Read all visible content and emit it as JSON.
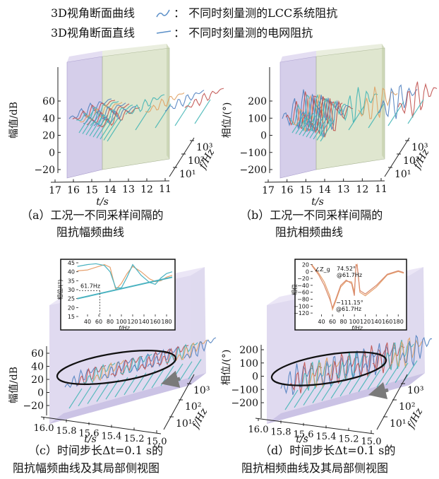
{
  "legend": {
    "curve": {
      "label": "3D视角断面曲线",
      "desc": "：  不同时刻量测的LCC系统阻抗",
      "color": "#5a8fc8"
    },
    "line": {
      "label": "3D视角断面直线",
      "desc": "：  不同时刻量测的电网阻抗",
      "color": "#5a8fc8"
    }
  },
  "colors": {
    "purple_box": "#b3a6d9",
    "green_box": "#c8d4ae",
    "box_edge": "#9a9ab0",
    "teal": "#3fb4b4",
    "orange": "#e0a060",
    "red": "#c0504d",
    "blue": "#4f7fbf",
    "zoom_orange": "#e6a16e",
    "zoom_teal": "#49b2c0",
    "ellipse": "#111111",
    "arrow": "#7a7a7a"
  },
  "chart_data": [
    {
      "id": "a",
      "type": "line",
      "caption": "（a）工况一不同采样间隔的\n阻抗幅频曲线",
      "zlabel": "幅值/dB",
      "zticks": [
        "60",
        "40",
        "20",
        "0",
        "−20"
      ],
      "zlim": [
        -20,
        60
      ],
      "tlabel": "t/s",
      "tticks": [
        "17",
        "16",
        "15",
        "14",
        "13",
        "12",
        "11"
      ],
      "flabel": "f/Hz",
      "fticks": [
        "10¹",
        "10²",
        "10³"
      ],
      "regions": [
        {
          "t": [
            16.5,
            15.0
          ],
          "color": "purple"
        },
        {
          "t": [
            15.0,
            11.3
          ],
          "color": "green"
        }
      ],
      "dense_times": [
        16.3,
        16.2,
        16.1,
        16.0,
        15.9,
        15.8,
        15.7,
        15.6,
        15.5
      ],
      "sparse_times": [
        14.0,
        13.0,
        12.0,
        11.3
      ]
    },
    {
      "id": "b",
      "type": "line",
      "caption": "（b）工况一不同采样间隔的\n阻抗相频曲线",
      "zlabel": "相位/(°)",
      "zticks": [
        "200",
        "100",
        "0",
        "−100",
        "−200"
      ],
      "zlim": [
        -200,
        200
      ],
      "tlabel": "t/s",
      "tticks": [
        "17",
        "16",
        "15",
        "14",
        "13",
        "12",
        "11"
      ],
      "flabel": "f/Hz",
      "fticks": [
        "10¹",
        "10²",
        "10³"
      ],
      "regions": [
        {
          "t": [
            16.5,
            15.0
          ],
          "color": "purple"
        },
        {
          "t": [
            15.0,
            11.3
          ],
          "color": "green"
        }
      ],
      "dense_times": [
        16.3,
        16.2,
        16.1,
        16.0,
        15.9,
        15.8,
        15.7,
        15.6,
        15.5
      ],
      "sparse_times": [
        14.0,
        13.0,
        12.0,
        11.3
      ]
    },
    {
      "id": "c",
      "type": "line",
      "caption": "（c）时间步长Δt=0.1 s的\n阻抗幅频曲线及其局部侧视图",
      "zlabel": "幅值/dB",
      "zticks": [
        "60",
        "40",
        "20",
        "0",
        "−20"
      ],
      "zlim": [
        -20,
        60
      ],
      "tlabel": "t/s",
      "tticks": [
        "16.0",
        "15.8",
        "15.6",
        "15.4",
        "15.2",
        "15.0"
      ],
      "flabel": "f/Hz",
      "fticks": [
        "10¹",
        "10²",
        "10³"
      ],
      "inset": {
        "type": "line",
        "xlabel": "f/Hz",
        "ylabel": "相位/(°)",
        "xticks": [
          "40",
          "60",
          "80",
          "100",
          "120",
          "140",
          "160",
          "180"
        ],
        "xlim": [
          20,
          190
        ],
        "yticks": [
          "45",
          "40",
          "35",
          "30",
          "25",
          "20",
          "15"
        ],
        "ylim": [
          15,
          45
        ],
        "annotation": "61.7Hz",
        "marker_x": 61.7,
        "series": [
          {
            "name": "",
            "color": "orange",
            "x": [
              22,
              40,
              55,
              70,
              80,
              90,
              100,
              110,
              120,
              135,
              150,
              160,
              170,
              180,
              190
            ],
            "y": [
              40.5,
              41,
              42.5,
              44,
              42.5,
              30,
              33.5,
              39,
              43,
              40,
              36,
              34.5,
              35,
              37,
              38
            ]
          },
          {
            "name": "",
            "color": "teal",
            "x": [
              22,
              40,
              55,
              70,
              80,
              90,
              100,
              110,
              120,
              135,
              150,
              160,
              170,
              180,
              190
            ],
            "y": [
              43,
              44,
              44.5,
              43.5,
              40,
              31,
              31,
              37,
              44,
              38,
              34,
              33,
              36.5,
              39,
              40
            ]
          },
          {
            "name": "",
            "color": "teal_line",
            "x": [
              22,
              190
            ],
            "y": [
              25,
              37
            ]
          }
        ]
      }
    },
    {
      "id": "d",
      "type": "line",
      "caption": "（d）时间步长Δt=0.1 s的\n阻抗相频曲线及其局部侧视图",
      "zlabel": "相位/(°)",
      "zticks": [
        "200",
        "100",
        "0",
        "−100",
        "−200"
      ],
      "zlim": [
        -200,
        200
      ],
      "tlabel": "t/s",
      "tticks": [
        "16.0",
        "15.8",
        "15.6",
        "15.4",
        "15.2",
        "15.0"
      ],
      "flabel": "f/Hz",
      "fticks": [
        "10¹",
        "10²",
        "10³"
      ],
      "inset": {
        "type": "line",
        "xlabel": "f/Hz",
        "ylabel": "相位",
        "xticks": [
          "40",
          "60",
          "80",
          "100",
          "120",
          "140",
          "160",
          "180"
        ],
        "xlim": [
          20,
          190
        ],
        "yticks": [
          "20",
          "0",
          "−20",
          "−40",
          "−60",
          "−80",
          "−100",
          "−120"
        ],
        "ylim": [
          -130,
          25
        ],
        "annotations": [
          "∠Z_g",
          "74.52°",
          "@61.7Hz",
          "−111.15°",
          "@61.7Hz"
        ],
        "series": [
          {
            "name": "",
            "color": "orange",
            "x": [
              22,
              35,
              45,
              55,
              60,
              65,
              75,
              85,
              95,
              100,
              103,
              105,
              110,
              120,
              140,
              160,
              180,
              190
            ],
            "y": [
              20,
              -5,
              -30,
              -70,
              -110,
              -90,
              -45,
              -28,
              -30,
              -60,
              15,
              20,
              -60,
              -70,
              -45,
              -10,
              0,
              -5
            ]
          },
          {
            "name": "",
            "color": "orange_light",
            "x": [
              22,
              35,
              45,
              55,
              60,
              65,
              75,
              85,
              95,
              100,
              103,
              105,
              110,
              120,
              140,
              160,
              180,
              190
            ],
            "y": [
              18,
              -10,
              -40,
              -80,
              -105,
              -85,
              -40,
              -25,
              -35,
              -70,
              20,
              18,
              -55,
              -65,
              -40,
              -8,
              2,
              -3
            ]
          }
        ]
      }
    }
  ]
}
